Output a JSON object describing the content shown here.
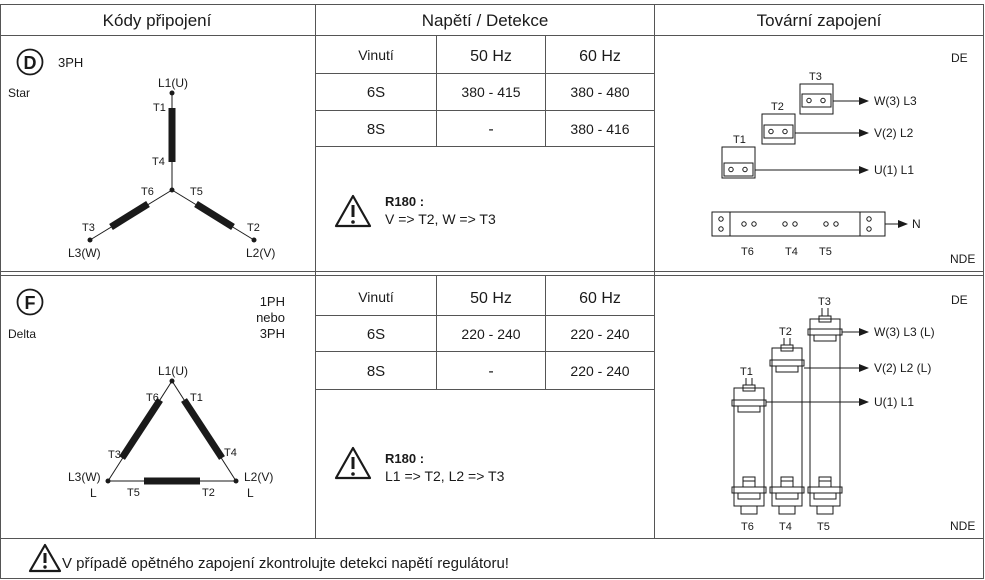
{
  "headers": {
    "codes": "Kódy připojení",
    "voltage": "Napětí / Detekce",
    "factory": "Tovární zapojení"
  },
  "row_d": {
    "letter": "D",
    "phase": "3PH",
    "mode": "Star",
    "diagram": {
      "l1": "L1(U)",
      "l2": "L2(V)",
      "l3": "L3(W)",
      "t1": "T1",
      "t2": "T2",
      "t3": "T3",
      "t4": "T4",
      "t5": "T5",
      "t6": "T6"
    },
    "table": {
      "col_winding": "Vinutí",
      "col_50": "50 Hz",
      "col_60": "60 Hz",
      "rows": [
        {
          "w": "6S",
          "hz50": "380 - 415",
          "hz60": "380 - 480"
        },
        {
          "w": "8S",
          "hz50": "-",
          "hz60": "380 - 416"
        }
      ]
    },
    "note_title": "R180 :",
    "note_text": "V => T2, W => T3",
    "wiring": {
      "de": "DE",
      "nde": "NDE",
      "t1": "T1",
      "t2": "T2",
      "t3": "T3",
      "w3": "W(3) L3",
      "v2": "V(2) L2",
      "u1": "U(1) L1",
      "t6": "T6",
      "t4": "T4",
      "t5": "T5",
      "n": "N"
    }
  },
  "row_f": {
    "letter": "F",
    "phase_line1": "1PH",
    "phase_line2": "nebo",
    "phase_line3": "3PH",
    "mode": "Delta",
    "diagram": {
      "l1": "L1(U)",
      "l2": "L2(V)",
      "l3": "L3(W)",
      "l": "L",
      "t1": "T1",
      "t2": "T2",
      "t3": "T3",
      "t4": "T4",
      "t5": "T5",
      "t6": "T6"
    },
    "table": {
      "col_winding": "Vinutí",
      "col_50": "50 Hz",
      "col_60": "60 Hz",
      "rows": [
        {
          "w": "6S",
          "hz50": "220 - 240",
          "hz60": "220 - 240"
        },
        {
          "w": "8S",
          "hz50": "-",
          "hz60": "220 - 240"
        }
      ]
    },
    "note_title": "R180 :",
    "note_text": "L1 => T2, L2 => T3",
    "wiring": {
      "de": "DE",
      "nde": "NDE",
      "t1": "T1",
      "t2": "T2",
      "t3": "T3",
      "w3": "W(3) L3  (L)",
      "v2": "V(2) L2  (L)",
      "u1": "U(1) L1",
      "t6": "T6",
      "t4": "T4",
      "t5": "T5"
    }
  },
  "footer": {
    "warning": "V případě opětného zapojení zkontrolujte detekci napětí regulátoru!"
  },
  "colors": {
    "line": "#555555",
    "coil": "#1a1a1a",
    "text": "#1a1a1a"
  }
}
